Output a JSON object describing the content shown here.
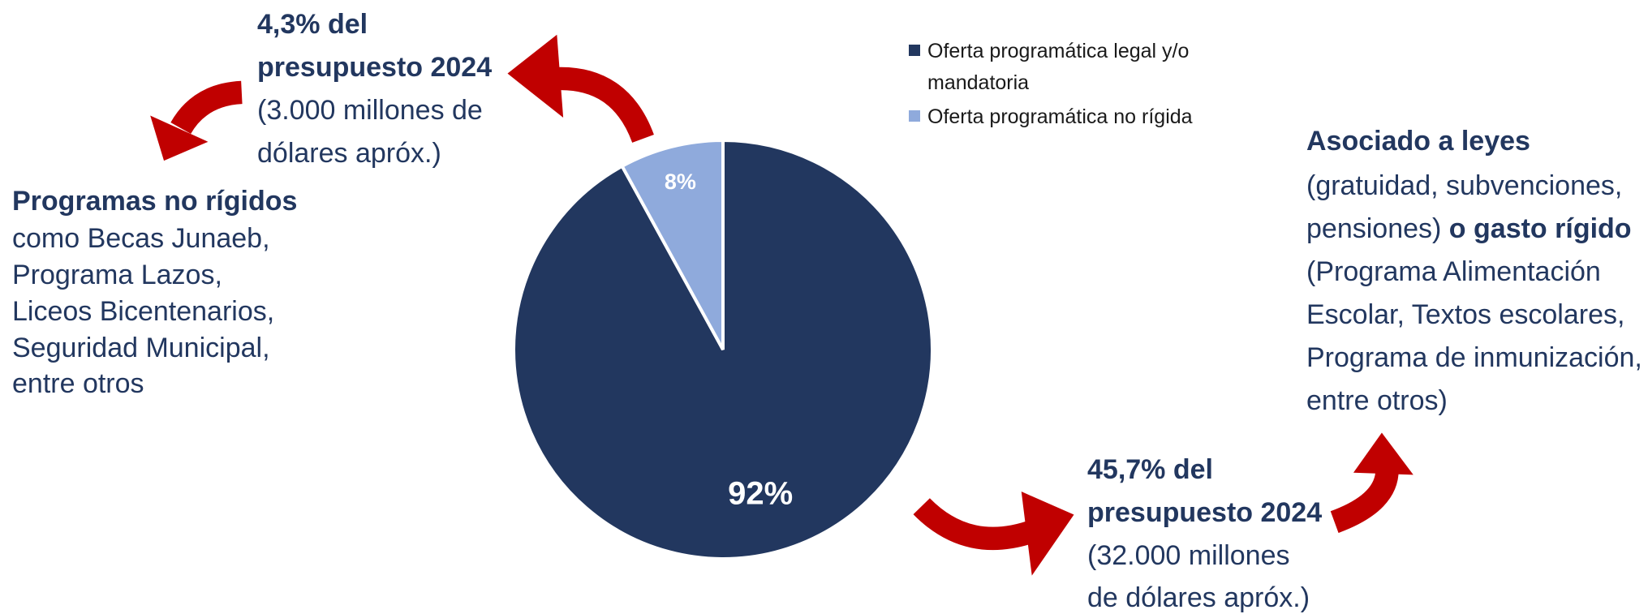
{
  "chart_data": {
    "type": "pie",
    "series": [
      {
        "name": "Oferta programática legal y/o mandatoria",
        "legend_lines": [
          "Oferta programática legal y/o",
          "mandatoria"
        ],
        "color": "#22375f",
        "value": 92,
        "value_label": "92%"
      },
      {
        "name": "Oferta programática no rígida",
        "legend_lines": [
          "Oferta programática no rígida"
        ],
        "color": "#8faadc",
        "value": 8,
        "value_label": "8%"
      }
    ],
    "annotations": {
      "top_left": {
        "bold": [
          "4,3% del",
          "presupuesto 2024"
        ],
        "normal": [
          "(3.000 millones de",
          "dólares apróx.)"
        ]
      },
      "left": {
        "bold": [
          "Programas no rígidos"
        ],
        "normal": [
          "como Becas Junaeb,",
          "Programa Lazos,",
          "Liceos Bicentenarios,",
          "Seguridad Municipal,",
          "entre otros"
        ]
      },
      "right": {
        "bold_1": "Asociado a leyes",
        "line_2": "(gratuidad, subvenciones,",
        "line_3": "pensiones)",
        "bold_3": "o gasto rígido",
        "normal": [
          "(Programa Alimentación",
          "Escolar, Textos escolares,",
          "Programa de inmunización,",
          "entre otros)"
        ]
      },
      "bottom": {
        "bold": [
          "45,7% del",
          "presupuesto 2024"
        ],
        "normal": [
          "(32.000 millones",
          "de dólares apróx.)"
        ]
      }
    }
  }
}
